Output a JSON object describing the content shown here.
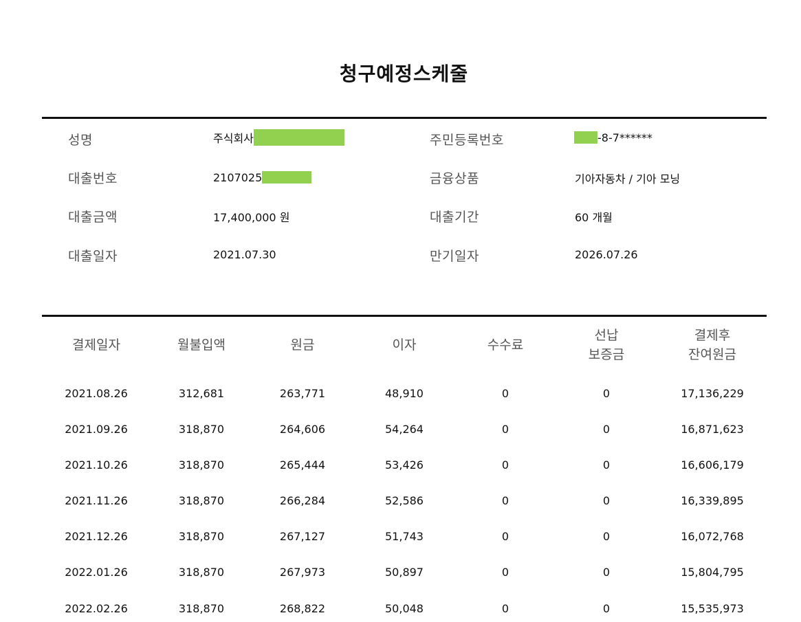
{
  "title": "청구예정스케줄",
  "info": {
    "name_label": "성명",
    "name_value": "주식회사",
    "rrn_label": "주민등록번호",
    "rrn_value": "-8-7******",
    "loan_no_label": "대출번호",
    "loan_no_value": "2107025",
    "product_label": "금융상품",
    "product_value": "기아자동차 / 기아 모닝",
    "amount_label": "대출금액",
    "amount_value": "17,400,000 원",
    "term_label": "대출기간",
    "term_value": "60 개월",
    "loan_date_label": "대출일자",
    "loan_date_value": "2021.07.30",
    "maturity_label": "만기일자",
    "maturity_value": "2026.07.26"
  },
  "redaction_color": "#92d050",
  "table": {
    "headers": [
      "결제일자",
      "월불입액",
      "원금",
      "이자",
      "수수료",
      "선납\n보증금",
      "결제후\n잔여원금"
    ],
    "rows": [
      [
        "2021.08.26",
        "312,681",
        "263,771",
        "48,910",
        "0",
        "0",
        "17,136,229"
      ],
      [
        "2021.09.26",
        "318,870",
        "264,606",
        "54,264",
        "0",
        "0",
        "16,871,623"
      ],
      [
        "2021.10.26",
        "318,870",
        "265,444",
        "53,426",
        "0",
        "0",
        "16,606,179"
      ],
      [
        "2021.11.26",
        "318,870",
        "266,284",
        "52,586",
        "0",
        "0",
        "16,339,895"
      ],
      [
        "2021.12.26",
        "318,870",
        "267,127",
        "51,743",
        "0",
        "0",
        "16,072,768"
      ],
      [
        "2022.01.26",
        "318,870",
        "267,973",
        "50,897",
        "0",
        "0",
        "15,804,795"
      ],
      [
        "2022.02.26",
        "318,870",
        "268,822",
        "50,048",
        "0",
        "0",
        "15,535,973"
      ]
    ]
  }
}
